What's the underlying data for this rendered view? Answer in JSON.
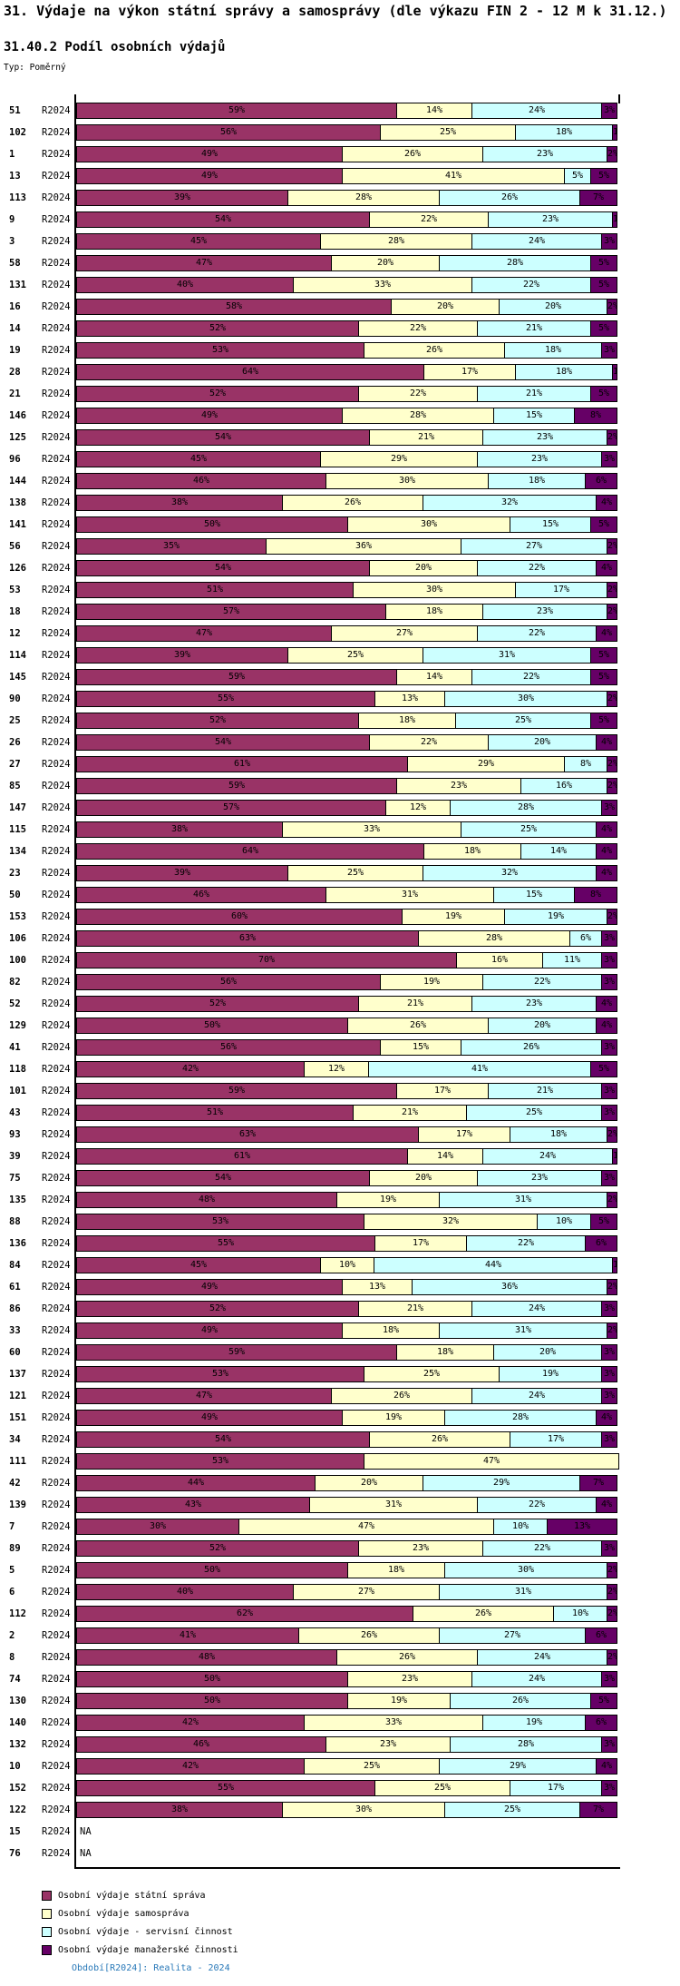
{
  "header": {
    "title": "31. Výdaje na výkon státní správy a samosprávy (dle výkazu FIN 2 - 12 M k 31.12.)",
    "subtitle": "31.40.2 Podíl osobních výdajů",
    "type_label": "Typ: Poměrný"
  },
  "chart_data": {
    "type": "bar",
    "orientation": "horizontal",
    "stacked": true,
    "unit": "%",
    "x_range": [
      0,
      100
    ],
    "grid": false,
    "legend_position": "bottom-left",
    "period_label": "R2024",
    "na_label": "NA",
    "series": [
      {
        "name": "Osobní výdaje státní správa",
        "color": "#993366"
      },
      {
        "name": "Osobní výdaje samospráva",
        "color": "#FFFFCC"
      },
      {
        "name": "Osobní výdaje - servisní činnost",
        "color": "#CCFFFF"
      },
      {
        "name": "Osobní výdaje manažerské činnosti",
        "color": "#660066"
      }
    ],
    "rows": [
      {
        "id": "51",
        "values": [
          59,
          14,
          24,
          3
        ]
      },
      {
        "id": "102",
        "values": [
          56,
          25,
          18,
          1
        ]
      },
      {
        "id": "1",
        "values": [
          49,
          26,
          23,
          2
        ]
      },
      {
        "id": "13",
        "values": [
          49,
          41,
          5,
          5
        ]
      },
      {
        "id": "113",
        "values": [
          39,
          28,
          26,
          7
        ]
      },
      {
        "id": "9",
        "values": [
          54,
          22,
          23,
          1
        ]
      },
      {
        "id": "3",
        "values": [
          45,
          28,
          24,
          3
        ]
      },
      {
        "id": "58",
        "values": [
          47,
          20,
          28,
          5
        ]
      },
      {
        "id": "131",
        "values": [
          40,
          33,
          22,
          5
        ]
      },
      {
        "id": "16",
        "values": [
          58,
          20,
          20,
          2
        ]
      },
      {
        "id": "14",
        "values": [
          52,
          22,
          21,
          5
        ]
      },
      {
        "id": "19",
        "values": [
          53,
          26,
          18,
          3
        ]
      },
      {
        "id": "28",
        "values": [
          64,
          17,
          18,
          1
        ]
      },
      {
        "id": "21",
        "values": [
          52,
          22,
          21,
          5
        ]
      },
      {
        "id": "146",
        "values": [
          49,
          28,
          15,
          8
        ]
      },
      {
        "id": "125",
        "values": [
          54,
          21,
          23,
          2
        ]
      },
      {
        "id": "96",
        "values": [
          45,
          29,
          23,
          3
        ]
      },
      {
        "id": "144",
        "values": [
          46,
          30,
          18,
          6
        ]
      },
      {
        "id": "138",
        "values": [
          38,
          26,
          32,
          4
        ]
      },
      {
        "id": "141",
        "values": [
          50,
          30,
          15,
          5
        ]
      },
      {
        "id": "56",
        "values": [
          35,
          36,
          27,
          2
        ]
      },
      {
        "id": "126",
        "values": [
          54,
          20,
          22,
          4
        ]
      },
      {
        "id": "53",
        "values": [
          51,
          30,
          17,
          2
        ]
      },
      {
        "id": "18",
        "values": [
          57,
          18,
          23,
          2
        ]
      },
      {
        "id": "12",
        "values": [
          47,
          27,
          22,
          4
        ]
      },
      {
        "id": "114",
        "values": [
          39,
          25,
          31,
          5
        ]
      },
      {
        "id": "145",
        "values": [
          59,
          14,
          22,
          5
        ]
      },
      {
        "id": "90",
        "values": [
          55,
          13,
          30,
          2
        ]
      },
      {
        "id": "25",
        "values": [
          52,
          18,
          25,
          5
        ]
      },
      {
        "id": "26",
        "values": [
          54,
          22,
          20,
          4
        ]
      },
      {
        "id": "27",
        "values": [
          61,
          29,
          8,
          2
        ]
      },
      {
        "id": "85",
        "values": [
          59,
          23,
          16,
          2
        ]
      },
      {
        "id": "147",
        "values": [
          57,
          12,
          28,
          3
        ]
      },
      {
        "id": "115",
        "values": [
          38,
          33,
          25,
          4
        ]
      },
      {
        "id": "134",
        "values": [
          64,
          18,
          14,
          4
        ]
      },
      {
        "id": "23",
        "values": [
          39,
          25,
          32,
          4
        ]
      },
      {
        "id": "50",
        "values": [
          46,
          31,
          15,
          8
        ]
      },
      {
        "id": "153",
        "values": [
          60,
          19,
          19,
          2
        ]
      },
      {
        "id": "106",
        "values": [
          63,
          28,
          6,
          3
        ]
      },
      {
        "id": "100",
        "values": [
          70,
          16,
          11,
          3
        ]
      },
      {
        "id": "82",
        "values": [
          56,
          19,
          22,
          3
        ]
      },
      {
        "id": "52",
        "values": [
          52,
          21,
          23,
          4
        ]
      },
      {
        "id": "129",
        "values": [
          50,
          26,
          20,
          4
        ]
      },
      {
        "id": "41",
        "values": [
          56,
          15,
          26,
          3
        ]
      },
      {
        "id": "118",
        "values": [
          42,
          12,
          41,
          5
        ]
      },
      {
        "id": "101",
        "values": [
          59,
          17,
          21,
          3
        ]
      },
      {
        "id": "43",
        "values": [
          51,
          21,
          25,
          3
        ]
      },
      {
        "id": "93",
        "values": [
          63,
          17,
          18,
          2
        ]
      },
      {
        "id": "39",
        "values": [
          61,
          14,
          24,
          1
        ]
      },
      {
        "id": "75",
        "values": [
          54,
          20,
          23,
          3
        ]
      },
      {
        "id": "135",
        "values": [
          48,
          19,
          31,
          2
        ]
      },
      {
        "id": "88",
        "values": [
          53,
          32,
          10,
          5
        ]
      },
      {
        "id": "136",
        "values": [
          55,
          17,
          22,
          6
        ]
      },
      {
        "id": "84",
        "values": [
          45,
          10,
          44,
          1
        ]
      },
      {
        "id": "61",
        "values": [
          49,
          13,
          36,
          2
        ]
      },
      {
        "id": "86",
        "values": [
          52,
          21,
          24,
          3
        ]
      },
      {
        "id": "33",
        "values": [
          49,
          18,
          31,
          2
        ]
      },
      {
        "id": "60",
        "values": [
          59,
          18,
          20,
          3
        ]
      },
      {
        "id": "137",
        "values": [
          53,
          25,
          19,
          3
        ]
      },
      {
        "id": "121",
        "values": [
          47,
          26,
          24,
          3
        ]
      },
      {
        "id": "151",
        "values": [
          49,
          19,
          28,
          4
        ]
      },
      {
        "id": "34",
        "values": [
          54,
          26,
          17,
          3
        ]
      },
      {
        "id": "111",
        "values": [
          53,
          47,
          0,
          0
        ]
      },
      {
        "id": "42",
        "values": [
          44,
          20,
          29,
          7
        ]
      },
      {
        "id": "139",
        "values": [
          43,
          31,
          22,
          4
        ]
      },
      {
        "id": "7",
        "values": [
          30,
          47,
          10,
          13
        ]
      },
      {
        "id": "89",
        "values": [
          52,
          23,
          22,
          3
        ]
      },
      {
        "id": "5",
        "values": [
          50,
          18,
          30,
          2
        ]
      },
      {
        "id": "6",
        "values": [
          40,
          27,
          31,
          2
        ]
      },
      {
        "id": "112",
        "values": [
          62,
          26,
          10,
          2
        ]
      },
      {
        "id": "2",
        "values": [
          41,
          26,
          27,
          6
        ]
      },
      {
        "id": "8",
        "values": [
          48,
          26,
          24,
          2
        ]
      },
      {
        "id": "74",
        "values": [
          50,
          23,
          24,
          3
        ]
      },
      {
        "id": "130",
        "values": [
          50,
          19,
          26,
          5
        ]
      },
      {
        "id": "140",
        "values": [
          42,
          33,
          19,
          6
        ]
      },
      {
        "id": "132",
        "values": [
          46,
          23,
          28,
          3
        ]
      },
      {
        "id": "10",
        "values": [
          42,
          25,
          29,
          4
        ]
      },
      {
        "id": "152",
        "values": [
          55,
          25,
          17,
          3
        ]
      },
      {
        "id": "122",
        "values": [
          38,
          30,
          25,
          7
        ]
      },
      {
        "id": "15",
        "values": null
      },
      {
        "id": "76",
        "values": null
      }
    ]
  },
  "footer": {
    "text": "Období[R2024]: Realita - 2024",
    "color": "#2878B8"
  }
}
